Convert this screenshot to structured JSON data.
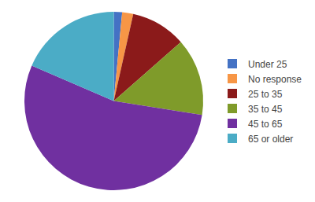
{
  "chart_data": {
    "type": "pie",
    "categories": [
      "Under 25",
      "No response",
      "25 to 35",
      "35 to 45",
      "45 to 65",
      "65 or older"
    ],
    "values": [
      1.5,
      2.0,
      10,
      14,
      54,
      18.5
    ],
    "colors": [
      "#4472c4",
      "#f79646",
      "#8b1a1a",
      "#7f9b2a",
      "#7030a0",
      "#4bacc6"
    ],
    "legend": "right"
  }
}
